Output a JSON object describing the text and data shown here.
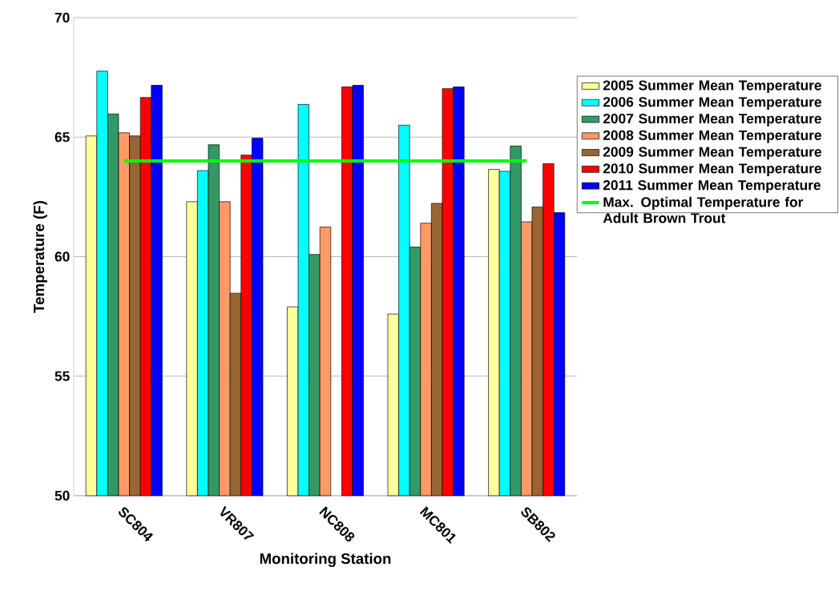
{
  "chart_data": {
    "type": "bar",
    "xlabel": "Monitoring Station",
    "ylabel": "Temperature (F)",
    "categories": [
      "SC804",
      "VR807",
      "NC808",
      "MC801",
      "SB802"
    ],
    "series": [
      {
        "name": "2005 Summer Mean Temperature",
        "color": "#ffff99",
        "values": [
          65.05,
          62.3,
          57.9,
          57.6,
          63.65
        ]
      },
      {
        "name": "2006 Summer Mean Temperature",
        "color": "#00ffff",
        "values": [
          67.76,
          63.6,
          66.37,
          65.5,
          63.57
        ]
      },
      {
        "name": "2007 Summer Mean Temperature",
        "color": "#339966",
        "values": [
          65.97,
          64.68,
          60.09,
          60.4,
          64.63
        ]
      },
      {
        "name": "2008 Summer Mean Temperature",
        "color": "#ff9966",
        "values": [
          65.18,
          62.3,
          61.24,
          61.4,
          61.46
        ]
      },
      {
        "name": "2009 Summer Mean Temperature",
        "color": "#996633",
        "values": [
          65.05,
          58.47,
          null,
          62.23,
          62.08
        ]
      },
      {
        "name": "2010 Summer Mean Temperature",
        "color": "#ff0000",
        "values": [
          66.66,
          64.25,
          67.1,
          67.03,
          63.89
        ]
      },
      {
        "name": "2011 Summer Mean Temperature",
        "color": "#0000ff",
        "values": [
          67.17,
          64.96,
          67.17,
          67.1,
          61.84
        ]
      },
      {
        "name": "Max. Optimal Temperature for Adult Brown Trout",
        "color": "#00ff00",
        "type": "line",
        "values": [
          64,
          64,
          64,
          64,
          64
        ]
      }
    ],
    "ylim": [
      50,
      70
    ],
    "yticks": [
      50,
      55,
      60,
      65,
      70
    ],
    "grid": "y",
    "legend": "right"
  }
}
